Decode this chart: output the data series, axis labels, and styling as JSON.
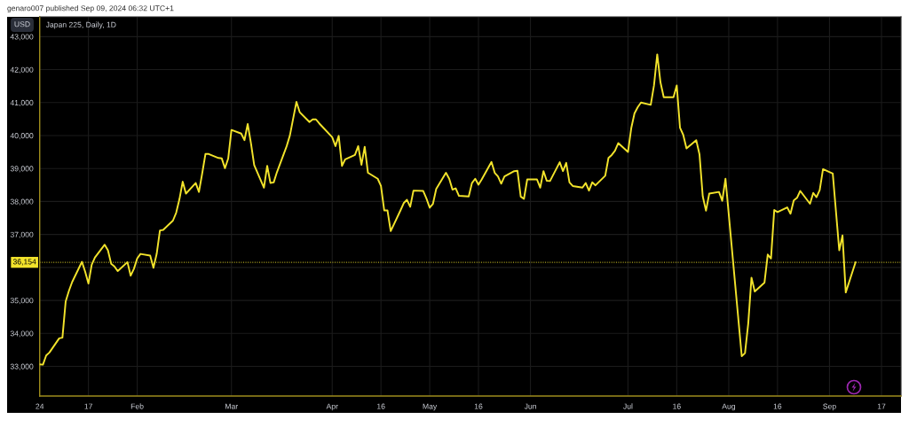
{
  "chart_data": {
    "type": "line",
    "title": "Japan 225, Daily, 1D",
    "ylabel": "USD",
    "annotations": [
      "genaro007 published Sep 09, 2024 06:32 UTC+1"
    ],
    "series": [
      {
        "color": "#f2e32b",
        "x": [
          "2024-01-02",
          "2024-01-03",
          "2024-01-04",
          "2024-01-05",
          "2024-01-08",
          "2024-01-09",
          "2024-01-10",
          "2024-01-11",
          "2024-01-12",
          "2024-01-15",
          "2024-01-16",
          "2024-01-17",
          "2024-01-18",
          "2024-01-19",
          "2024-01-22",
          "2024-01-23",
          "2024-01-24",
          "2024-01-25",
          "2024-01-26",
          "2024-01-29",
          "2024-01-30",
          "2024-01-31",
          "2024-02-01",
          "2024-02-02",
          "2024-02-05",
          "2024-02-06",
          "2024-02-07",
          "2024-02-08",
          "2024-02-09",
          "2024-02-12",
          "2024-02-13",
          "2024-02-14",
          "2024-02-15",
          "2024-02-16",
          "2024-02-19",
          "2024-02-20",
          "2024-02-21",
          "2024-02-22",
          "2024-02-23",
          "2024-02-26",
          "2024-02-27",
          "2024-02-28",
          "2024-02-29",
          "2024-03-01",
          "2024-03-04",
          "2024-03-05",
          "2024-03-06",
          "2024-03-07",
          "2024-03-08",
          "2024-03-11",
          "2024-03-12",
          "2024-03-13",
          "2024-03-14",
          "2024-03-15",
          "2024-03-18",
          "2024-03-19",
          "2024-03-20",
          "2024-03-21",
          "2024-03-22",
          "2024-03-25",
          "2024-03-26",
          "2024-03-27",
          "2024-03-28",
          "2024-04-01",
          "2024-04-02",
          "2024-04-03",
          "2024-04-04",
          "2024-04-05",
          "2024-04-08",
          "2024-04-09",
          "2024-04-10",
          "2024-04-11",
          "2024-04-12",
          "2024-04-15",
          "2024-04-16",
          "2024-04-17",
          "2024-04-18",
          "2024-04-19",
          "2024-04-22",
          "2024-04-23",
          "2024-04-24",
          "2024-04-25",
          "2024-04-26",
          "2024-04-29",
          "2024-04-30",
          "2024-05-01",
          "2024-05-02",
          "2024-05-03",
          "2024-05-06",
          "2024-05-07",
          "2024-05-08",
          "2024-05-09",
          "2024-05-10",
          "2024-05-13",
          "2024-05-14",
          "2024-05-15",
          "2024-05-16",
          "2024-05-17",
          "2024-05-20",
          "2024-05-21",
          "2024-05-22",
          "2024-05-23",
          "2024-05-24",
          "2024-05-27",
          "2024-05-28",
          "2024-05-29",
          "2024-05-30",
          "2024-05-31",
          "2024-06-03",
          "2024-06-04",
          "2024-06-05",
          "2024-06-06",
          "2024-06-07",
          "2024-06-10",
          "2024-06-11",
          "2024-06-12",
          "2024-06-13",
          "2024-06-14",
          "2024-06-17",
          "2024-06-18",
          "2024-06-19",
          "2024-06-20",
          "2024-06-21",
          "2024-06-24",
          "2024-06-25",
          "2024-06-26",
          "2024-06-27",
          "2024-06-28",
          "2024-07-01",
          "2024-07-02",
          "2024-07-03",
          "2024-07-04",
          "2024-07-05",
          "2024-07-08",
          "2024-07-09",
          "2024-07-10",
          "2024-07-11",
          "2024-07-12",
          "2024-07-15",
          "2024-07-16",
          "2024-07-17",
          "2024-07-18",
          "2024-07-19",
          "2024-07-22",
          "2024-07-23",
          "2024-07-24",
          "2024-07-25",
          "2024-07-26",
          "2024-07-29",
          "2024-07-30",
          "2024-07-31",
          "2024-08-05",
          "2024-08-06",
          "2024-08-07",
          "2024-08-08",
          "2024-08-09",
          "2024-08-12",
          "2024-08-13",
          "2024-08-14",
          "2024-08-15",
          "2024-08-16",
          "2024-08-19",
          "2024-08-20",
          "2024-08-21",
          "2024-08-22",
          "2024-08-23",
          "2024-08-26",
          "2024-08-27",
          "2024-08-28",
          "2024-08-29",
          "2024-08-30",
          "2024-09-02",
          "2024-09-04",
          "2024-09-05",
          "2024-09-06",
          "2024-09-09"
        ],
        "values": [
          33060,
          33050,
          33330,
          33420,
          33850,
          33870,
          34970,
          35290,
          35560,
          36170,
          35870,
          35510,
          36080,
          36300,
          36690,
          36520,
          36110,
          36030,
          35890,
          36160,
          35750,
          35960,
          36270,
          36410,
          36360,
          35990,
          36410,
          37120,
          37140,
          37420,
          37660,
          38070,
          38600,
          38240,
          38560,
          38290,
          38850,
          39440,
          39440,
          39320,
          39310,
          39010,
          39300,
          40170,
          40060,
          39860,
          40350,
          39770,
          39100,
          38420,
          39080,
          38560,
          38580,
          38890,
          39680,
          40010,
          40520,
          41020,
          40710,
          40410,
          40490,
          40490,
          40370,
          39950,
          39680,
          39990,
          39080,
          39280,
          39410,
          39680,
          39110,
          39660,
          38870,
          38690,
          38470,
          37730,
          37730,
          37100,
          37730,
          37950,
          38050,
          37840,
          38330,
          38320,
          38090,
          37810,
          37930,
          38380,
          38870,
          38690,
          38360,
          38400,
          38170,
          38150,
          38560,
          38690,
          38510,
          38670,
          39200,
          38870,
          38760,
          38540,
          38760,
          38920,
          38930,
          38150,
          38080,
          38670,
          38670,
          38420,
          38920,
          38630,
          38620,
          39190,
          38920,
          39170,
          38580,
          38470,
          38420,
          38560,
          38330,
          38580,
          38490,
          38780,
          39320,
          39410,
          39540,
          39770,
          39500,
          40220,
          40670,
          40860,
          41000,
          40930,
          41520,
          42460,
          41610,
          41160,
          41160,
          41520,
          40240,
          40020,
          39610,
          39860,
          39430,
          38160,
          37720,
          38240,
          38290,
          38020,
          38690,
          33310,
          33400,
          34300,
          35690,
          35270,
          35540,
          36390,
          36270,
          37740,
          37680,
          37820,
          37630,
          38030,
          38110,
          38320,
          37930,
          38260,
          38130,
          38350,
          38980,
          38850,
          36520,
          36970,
          35240,
          36154
        ]
      }
    ],
    "xlim": [
      "2024-01-02",
      "2024-09-23"
    ],
    "xticks": [
      {
        "value": "2024-01-02",
        "label": "24"
      },
      {
        "value": "2024-01-17",
        "label": "17"
      },
      {
        "value": "2024-02-01",
        "label": "Feb"
      },
      {
        "value": "2024-03-01",
        "label": "Mar"
      },
      {
        "value": "2024-04-01",
        "label": "Apr"
      },
      {
        "value": "2024-04-16",
        "label": "16"
      },
      {
        "value": "2024-05-01",
        "label": "May"
      },
      {
        "value": "2024-05-16",
        "label": "16"
      },
      {
        "value": "2024-06-01",
        "label": "Jun"
      },
      {
        "value": "2024-07-01",
        "label": "Jul"
      },
      {
        "value": "2024-07-16",
        "label": "16"
      },
      {
        "value": "2024-08-01",
        "label": "Aug"
      },
      {
        "value": "2024-08-16",
        "label": "16"
      },
      {
        "value": "2024-09-01",
        "label": "Sep"
      },
      {
        "value": "2024-09-17",
        "label": "17"
      }
    ],
    "ylim": [
      32100,
      43600
    ],
    "yticks": [
      {
        "value": 33000,
        "label": "33,000"
      },
      {
        "value": 34000,
        "label": "34,000"
      },
      {
        "value": 35000,
        "label": "35,000"
      },
      {
        "value": 36000,
        "label": null
      },
      {
        "value": 37000,
        "label": "37,000"
      },
      {
        "value": 38000,
        "label": "38,000"
      },
      {
        "value": 39000,
        "label": "39,000"
      },
      {
        "value": 40000,
        "label": "40,000"
      },
      {
        "value": 41000,
        "label": "41,000"
      },
      {
        "value": 42000,
        "label": "42,000"
      },
      {
        "value": 43000,
        "label": "43,000"
      }
    ],
    "grid": true,
    "ref_lines": [
      {
        "axis": "y",
        "value": 36154,
        "label": "36,154",
        "color": "#f2e32b",
        "line_style": "dotted"
      }
    ]
  }
}
